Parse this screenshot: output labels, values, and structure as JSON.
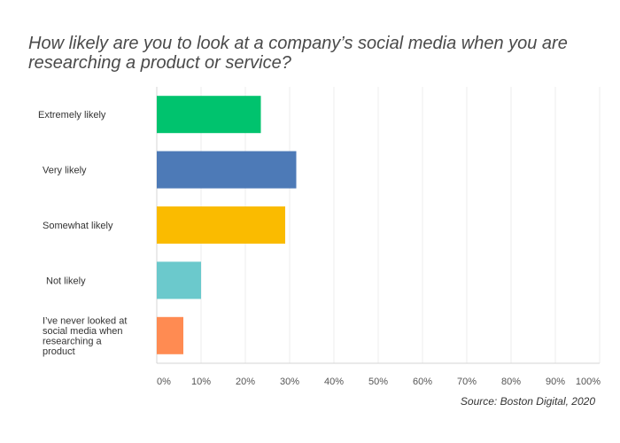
{
  "chart_data": {
    "type": "bar",
    "orientation": "horizontal",
    "title": "How likely are you to look at a company’s social media when you are researching a product or service?",
    "source": "Source: Boston Digital, 2020",
    "categories": [
      [
        "Extremely likely"
      ],
      [
        "Very likely"
      ],
      [
        "Somewhat likely"
      ],
      [
        "Not likely"
      ],
      [
        "I’ve never looked at",
        "social media when",
        "researching a",
        "product"
      ]
    ],
    "values": [
      23.5,
      31.5,
      29,
      10,
      6
    ],
    "colors": [
      "#00c36e",
      "#4d7ab7",
      "#fabb00",
      "#6bc9cc",
      "#ff8b52"
    ],
    "xlim": [
      0,
      100
    ],
    "ticks": [
      "0%",
      "10%",
      "20%",
      "30%",
      "40%",
      "50%",
      "60%",
      "70%",
      "80%",
      "90%",
      "100%"
    ],
    "grid": true,
    "xlabel": "",
    "ylabel": ""
  }
}
